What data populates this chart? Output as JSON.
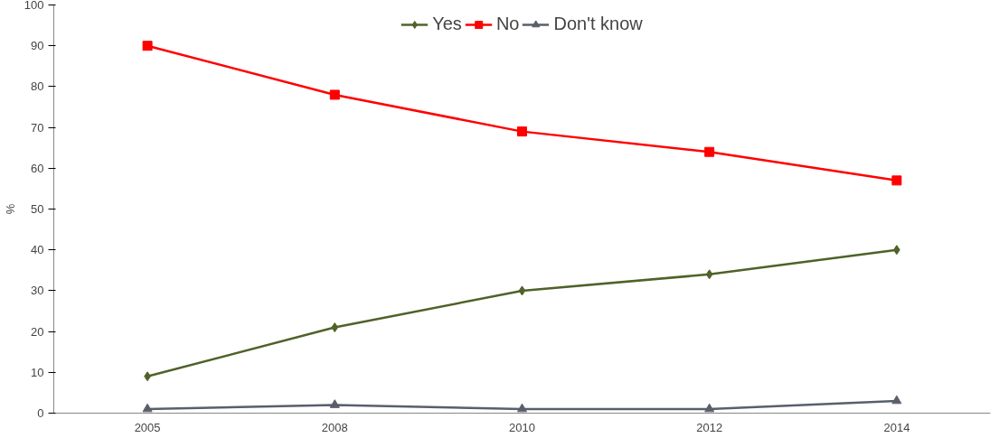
{
  "chart_data": {
    "type": "line",
    "categories": [
      "2005",
      "2008",
      "2010",
      "2012",
      "2014"
    ],
    "series": [
      {
        "name": "Yes",
        "color": "#4f6228",
        "marker": "diamond",
        "values": [
          9,
          21,
          30,
          34,
          40
        ]
      },
      {
        "name": "No",
        "color": "#ff0000",
        "marker": "square",
        "values": [
          90,
          78,
          69,
          64,
          57
        ]
      },
      {
        "name": "Don't know",
        "color": "#595f6b",
        "marker": "triangle",
        "values": [
          1,
          2,
          1,
          1,
          3
        ]
      }
    ],
    "ylabel": "%",
    "ylim": [
      0,
      100
    ],
    "yticks": [
      0,
      10,
      20,
      30,
      40,
      50,
      60,
      70,
      80,
      90,
      100
    ],
    "grid": false,
    "legend": "top",
    "line_style": "solid"
  }
}
